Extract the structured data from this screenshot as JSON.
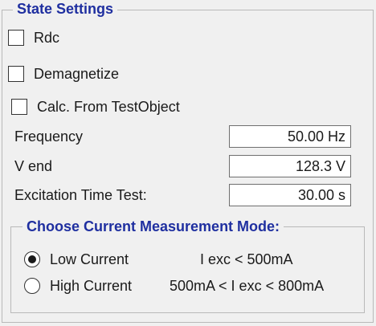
{
  "group": {
    "title": "State Settings"
  },
  "checkboxes": [
    {
      "label": "Rdc",
      "checked": false
    },
    {
      "label": "Demagnetize",
      "checked": false
    },
    {
      "label": "Calc. From TestObject",
      "checked": false
    }
  ],
  "fields": [
    {
      "label": "Frequency",
      "value": "50.00 Hz"
    },
    {
      "label": "V end",
      "value": "128.3 V"
    },
    {
      "label": "Excitation Time Test:",
      "value": "30.00 s"
    }
  ],
  "current_mode": {
    "title": "Choose Current Measurement Mode:",
    "options": [
      {
        "label": "Low Current",
        "range": "I exc < 500mA",
        "selected": true
      },
      {
        "label": "High Current",
        "range": "500mA < I exc < 800mA",
        "selected": false
      }
    ]
  },
  "colors": {
    "group_title": "#1f2fa0",
    "background": "#f0f0f0"
  }
}
